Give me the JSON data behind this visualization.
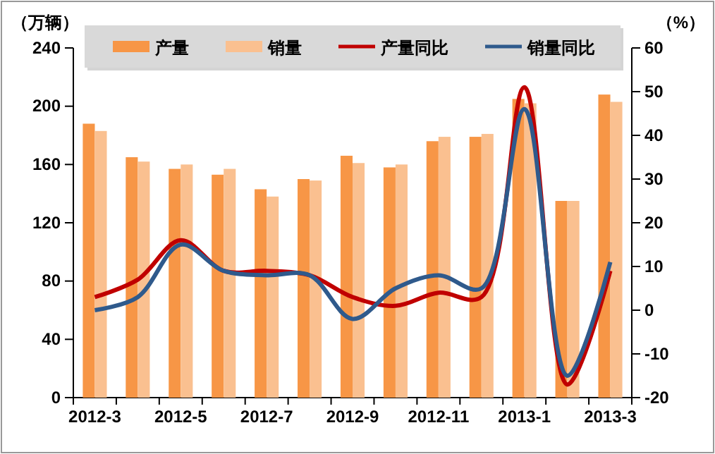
{
  "chart_data": {
    "type": "bar",
    "ylabel": "（万辆）",
    "y2label": "（%）",
    "categories": [
      "2012-3",
      null,
      "2012-5",
      null,
      "2012-7",
      null,
      "2012-9",
      null,
      "2012-11",
      null,
      "2013-1",
      null,
      "2013-3"
    ],
    "series": [
      {
        "name": "产量",
        "color": "#f79646",
        "values": [
          188,
          165,
          157,
          153,
          143,
          150,
          166,
          158,
          176,
          179,
          205,
          135,
          208
        ]
      },
      {
        "name": "销量",
        "color": "#fac090",
        "values": [
          183,
          162,
          160,
          157,
          138,
          149,
          161,
          160,
          179,
          181,
          202,
          135,
          203
        ]
      },
      {
        "name": "产量同比",
        "type": "line",
        "axis": "y2",
        "color": "#c00000",
        "values": [
          3,
          7,
          16,
          9,
          9,
          8,
          3,
          1,
          4,
          3,
          51,
          -17,
          9
        ]
      },
      {
        "name": "销量同比",
        "type": "line",
        "axis": "y2",
        "color": "#2f5a8c",
        "values": [
          0,
          3,
          15,
          9,
          8,
          8,
          -2,
          5,
          8,
          5,
          46,
          -15,
          11
        ]
      }
    ],
    "ylim": [
      0,
      240
    ],
    "yticks": [
      0,
      40,
      80,
      120,
      160,
      200,
      240
    ],
    "y2lim": [
      -20,
      60
    ],
    "y2ticks": [
      -20,
      -10,
      0,
      10,
      20,
      30,
      40,
      50,
      60
    ],
    "legend": "top",
    "grid": false
  }
}
